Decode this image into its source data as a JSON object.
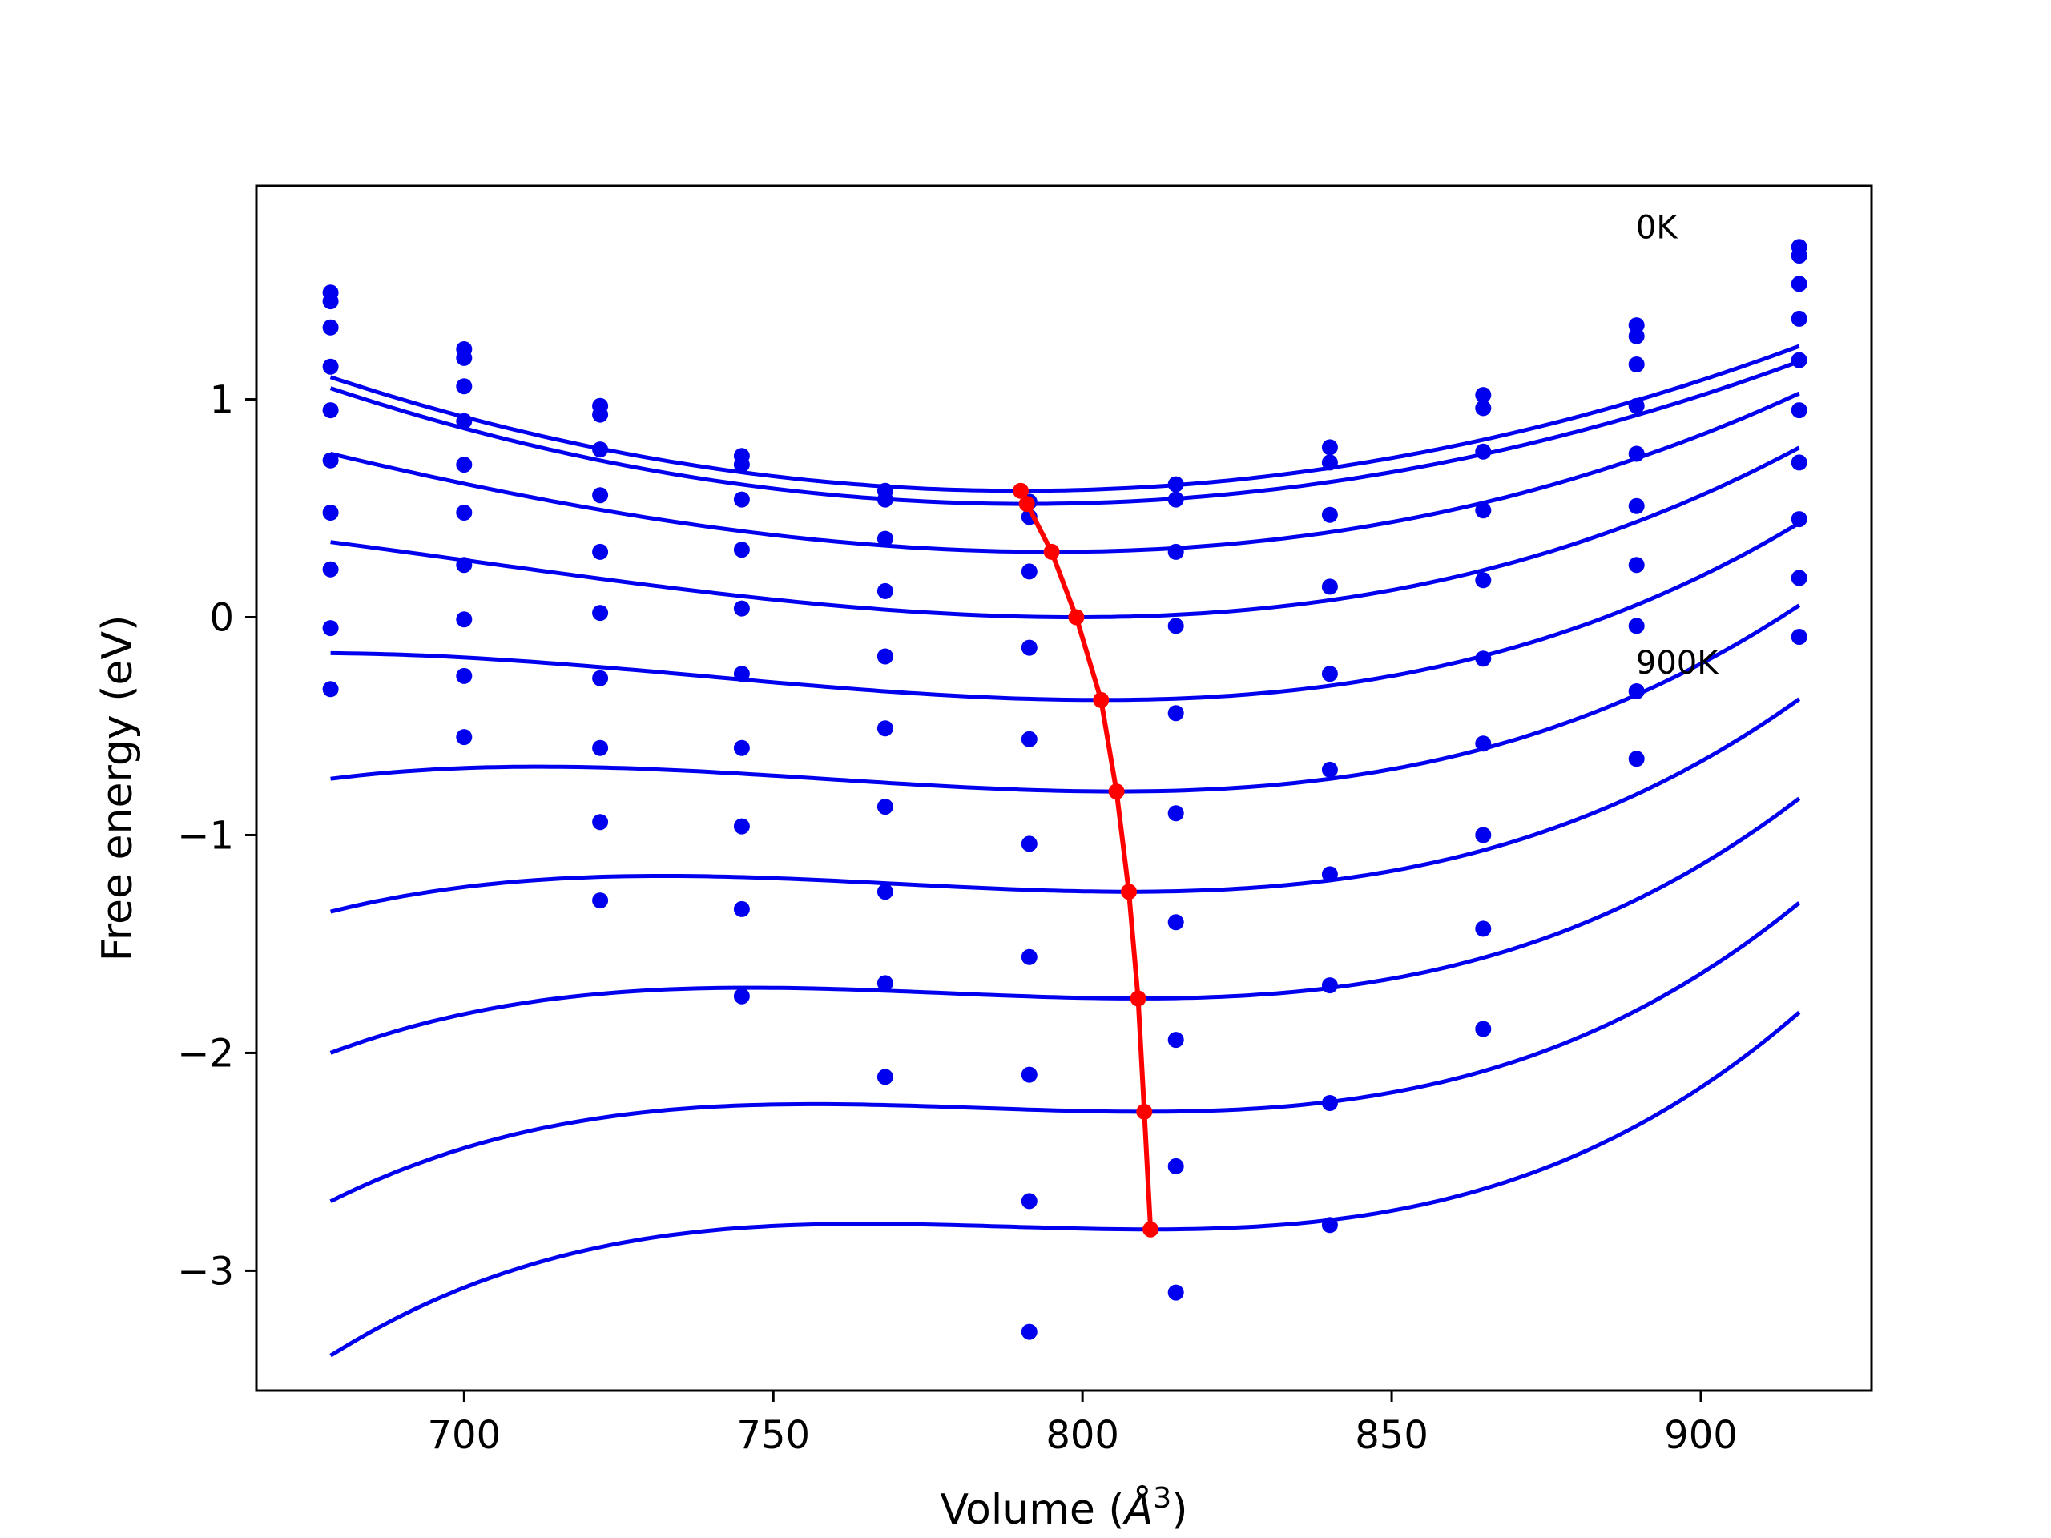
{
  "chart_data": {
    "type": "line",
    "title": "",
    "xlabel": "Volume",
    "xlabel_unit_base": "Å",
    "xlabel_unit_exp": "3",
    "ylabel": "Free energy (eV)",
    "xlim": [
      666.4,
      927.6
    ],
    "ylim": [
      -3.55,
      1.98
    ],
    "xticks": [
      {
        "value": 700,
        "label": "700"
      },
      {
        "value": 750,
        "label": "750"
      },
      {
        "value": 800,
        "label": "800"
      },
      {
        "value": 850,
        "label": "850"
      },
      {
        "value": 900,
        "label": "900"
      }
    ],
    "yticks": [
      {
        "value": 1,
        "label": "1"
      },
      {
        "value": 0,
        "label": "0"
      },
      {
        "value": -1,
        "label": "−1"
      },
      {
        "value": -2,
        "label": "−2"
      },
      {
        "value": -3,
        "label": "−3"
      }
    ],
    "annotations": [
      {
        "text": "0K",
        "x": 889.5,
        "y": 1.74
      },
      {
        "text": "900K",
        "x": 889.5,
        "y": -0.26
      }
    ],
    "colors": {
      "fit": "#0000ee",
      "points": "#0000ee",
      "minimum": "#ff0000"
    },
    "volumes": [
      678.4,
      700.0,
      722.0,
      744.9,
      768.1,
      791.4,
      815.1,
      840.0,
      864.8,
      889.6,
      915.9
    ],
    "fit_x_range": [
      678.4,
      915.9
    ],
    "series": [
      {
        "e0": 0.58,
        "v0": 790,
        "a": 4.19e-05,
        "b": 0.0,
        "points": [
          1.49,
          1.23,
          0.97,
          0.74,
          0.58,
          0.53,
          0.61,
          0.78,
          1.02,
          1.34,
          1.7
        ]
      },
      {
        "e0": 0.52,
        "v0": 791,
        "a": 4.19e-05,
        "b": 0.0,
        "points": [
          1.45,
          1.19,
          0.93,
          0.7,
          0.54,
          0.46,
          0.54,
          0.71,
          0.96,
          1.29,
          1.66
        ]
      },
      {
        "e0": 0.3,
        "v0": 795,
        "a": 4.13e-05,
        "b": 7e-08,
        "points": [
          1.33,
          1.06,
          0.77,
          0.54,
          0.36,
          0.21,
          0.3,
          0.47,
          0.76,
          1.16,
          1.53
        ]
      },
      {
        "e0": 0.0,
        "v0": 799,
        "a": 4.06e-05,
        "b": 1.4e-07,
        "points": [
          1.15,
          0.9,
          0.56,
          0.31,
          0.12,
          -0.14,
          -0.04,
          0.14,
          0.49,
          0.97,
          1.37
        ]
      },
      {
        "e0": -0.38,
        "v0": 803,
        "a": 4e-05,
        "b": 2.1e-07,
        "points": [
          0.95,
          0.7,
          0.3,
          0.04,
          -0.18,
          -0.56,
          -0.44,
          -0.26,
          0.17,
          0.75,
          1.18
        ]
      },
      {
        "e0": -0.8,
        "v0": 805.5,
        "a": 3.92e-05,
        "b": 2.8e-07,
        "points": [
          0.72,
          0.48,
          0.02,
          -0.26,
          -0.51,
          -1.04,
          -0.9,
          -0.7,
          -0.19,
          0.51,
          0.95
        ]
      },
      {
        "e0": -1.26,
        "v0": 807.5,
        "a": 3.84e-05,
        "b": 3.4e-07,
        "points": [
          0.48,
          0.24,
          -0.28,
          -0.6,
          -0.87,
          -1.56,
          -1.4,
          -1.18,
          -0.58,
          0.24,
          0.71
        ]
      },
      {
        "e0": -1.75,
        "v0": 809,
        "a": 3.76e-05,
        "b": 4e-07,
        "points": [
          0.22,
          -0.01,
          -0.6,
          -0.96,
          -1.26,
          -2.1,
          -1.94,
          -1.69,
          -1.0,
          -0.04,
          0.45
        ]
      },
      {
        "e0": -2.27,
        "v0": 810,
        "a": 3.68e-05,
        "b": 4.6e-07,
        "points": [
          -0.05,
          -0.27,
          -0.94,
          -1.34,
          -1.68,
          -2.68,
          -2.52,
          -2.23,
          -1.43,
          -0.34,
          0.18
        ]
      },
      {
        "e0": -2.81,
        "v0": 811,
        "a": 3.6e-05,
        "b": 5.2e-07,
        "points": [
          -0.33,
          -0.55,
          -1.3,
          -1.74,
          -2.11,
          -3.28,
          -3.1,
          -2.79,
          -1.89,
          -0.65,
          -0.09
        ]
      }
    ],
    "minimum_path": {
      "x": [
        790,
        791,
        795,
        799,
        803,
        805.5,
        807.5,
        809,
        810,
        811
      ],
      "y": [
        0.58,
        0.52,
        0.3,
        0.0,
        -0.38,
        -0.8,
        -1.26,
        -1.75,
        -2.27,
        -2.81
      ]
    }
  }
}
